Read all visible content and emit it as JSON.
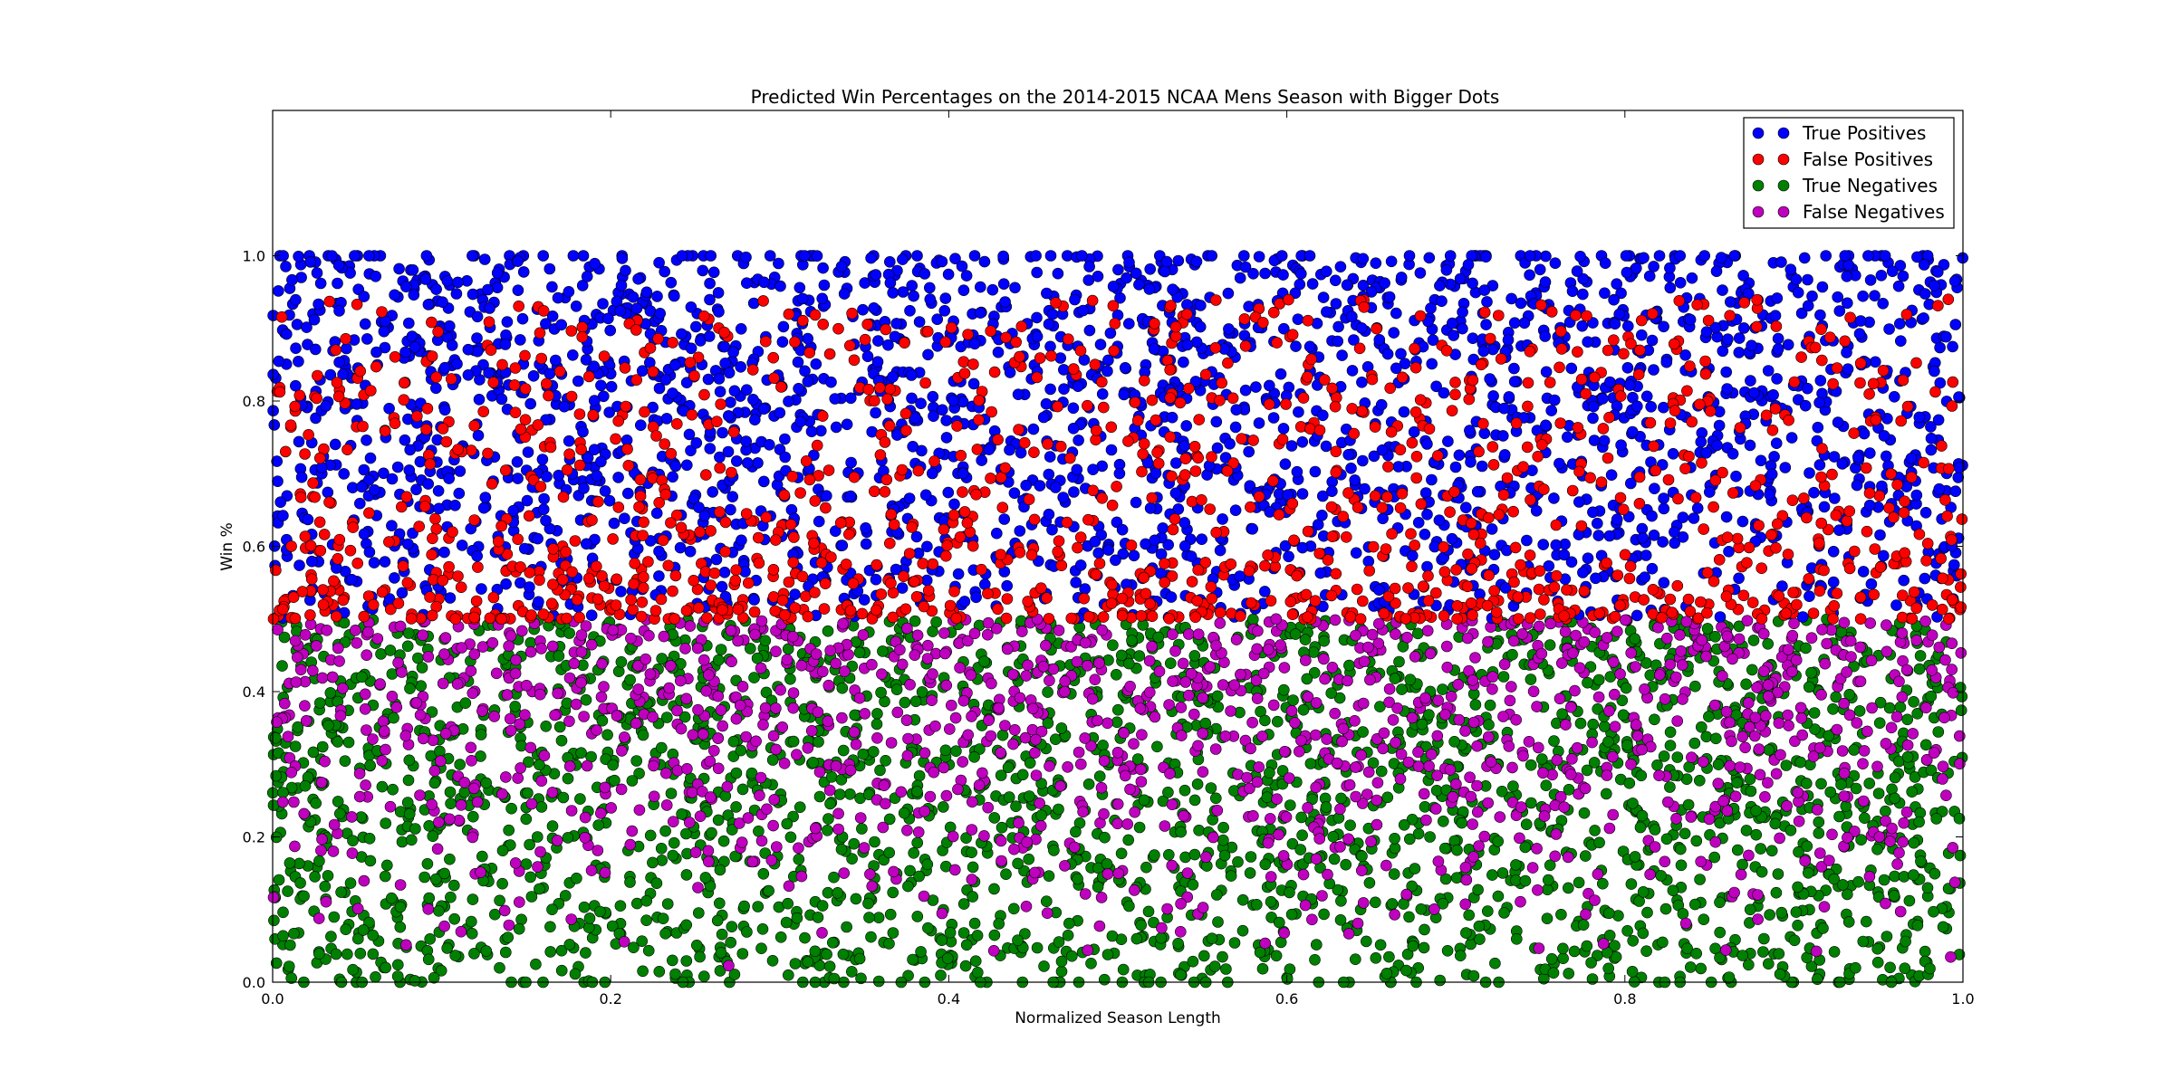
{
  "chart_data": {
    "type": "scatter",
    "title": "Predicted Win Percentages on the 2014-2015 NCAA Mens Season with Bigger Dots",
    "xlabel": "Normalized Season Length",
    "ylabel": "Win %",
    "xlim": [
      0,
      1
    ],
    "ylim": [
      0,
      1.2
    ],
    "xticks": [
      "0.0",
      "0.2",
      "0.4",
      "0.6",
      "0.8",
      "1.0"
    ],
    "yticks": [
      "0.0",
      "0.2",
      "0.4",
      "0.6",
      "0.8",
      "1.0"
    ],
    "grid": false,
    "legend_position": "top-right",
    "series": [
      {
        "name": "True Positives",
        "color": "#0000ff",
        "y_range": [
          0.5,
          1.0
        ],
        "approx_points": 2600
      },
      {
        "name": "False Positives",
        "color": "#ff0000",
        "y_range": [
          0.5,
          0.94
        ],
        "approx_points": 1300
      },
      {
        "name": "True Negatives",
        "color": "#008000",
        "y_range": [
          0.0,
          0.5
        ],
        "approx_points": 2600
      },
      {
        "name": "False Negatives",
        "color": "#bf00bf",
        "y_range": [
          0.0,
          0.5
        ],
        "approx_points": 1300
      }
    ]
  }
}
